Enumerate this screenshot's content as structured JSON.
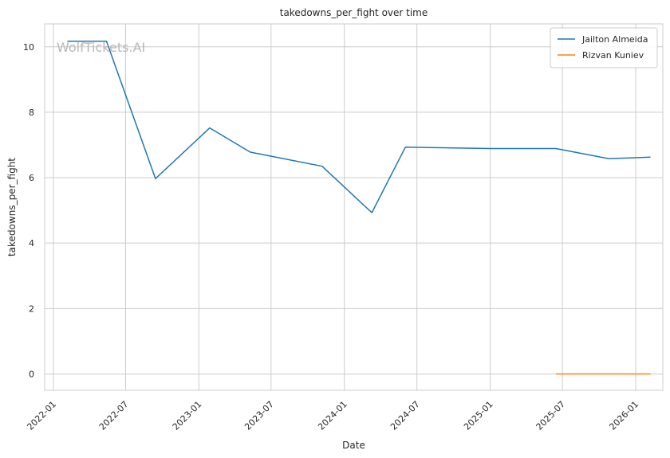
{
  "chart_data": {
    "type": "line",
    "title": "takedowns_per_fight over time",
    "xlabel": "Date",
    "ylabel": "takedowns_per_fight",
    "watermark": "WolfTickets.AI",
    "x_ticks": [
      "2022-01",
      "2022-07",
      "2023-01",
      "2023-07",
      "2024-01",
      "2024-07",
      "2025-01",
      "2025-07",
      "2026-01"
    ],
    "y_ticks": [
      0,
      2,
      4,
      6,
      8,
      10
    ],
    "xlim": [
      "2021-12-10",
      "2026-03-10"
    ],
    "ylim": [
      -0.5,
      10.7
    ],
    "grid": true,
    "legend_position": "top-right",
    "series": [
      {
        "name": "Jailton Almeida",
        "color": "#1f77b4",
        "points": [
          {
            "x": "2022-02-05",
            "y": 10.17
          },
          {
            "x": "2022-05-14",
            "y": 10.17
          },
          {
            "x": "2022-09-14",
            "y": 5.97
          },
          {
            "x": "2023-01-28",
            "y": 7.52
          },
          {
            "x": "2023-05-10",
            "y": 6.78
          },
          {
            "x": "2023-11-06",
            "y": 6.35
          },
          {
            "x": "2024-03-10",
            "y": 4.93
          },
          {
            "x": "2024-06-02",
            "y": 6.93
          },
          {
            "x": "2025-01-01",
            "y": 6.89
          },
          {
            "x": "2025-06-15",
            "y": 6.89
          },
          {
            "x": "2025-10-25",
            "y": 6.58
          },
          {
            "x": "2026-02-07",
            "y": 6.63
          }
        ]
      },
      {
        "name": "Rizvan Kuniev",
        "color": "#ff7f0e",
        "points": [
          {
            "x": "2025-06-15",
            "y": 0
          },
          {
            "x": "2026-02-07",
            "y": 0
          }
        ]
      }
    ]
  }
}
